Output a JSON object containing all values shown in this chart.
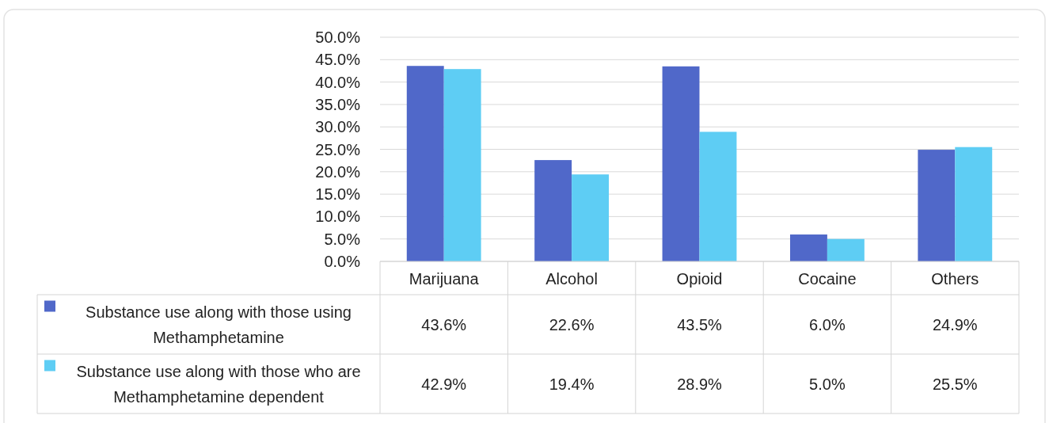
{
  "chart_data": {
    "type": "bar",
    "categories": [
      "Marijuana",
      "Alcohol",
      "Opioid",
      "Cocaine",
      "Others"
    ],
    "series": [
      {
        "name": "Substance use along with those using Methamphetamine",
        "color": "#5068c9",
        "values": [
          43.6,
          22.6,
          43.5,
          6.0,
          24.9
        ],
        "value_labels": [
          "43.6%",
          "22.6%",
          "43.5%",
          "6.0%",
          "24.9%"
        ]
      },
      {
        "name": "Substance use along with those who are Methamphetamine dependent",
        "color": "#5ecdf4",
        "values": [
          42.9,
          19.4,
          28.9,
          5.0,
          25.5
        ],
        "value_labels": [
          "42.9%",
          "19.4%",
          "28.9%",
          "5.0%",
          "25.5%"
        ]
      }
    ],
    "ylim": [
      0,
      50
    ],
    "yticks": [
      {
        "value": 0,
        "label": "0.0%"
      },
      {
        "value": 5,
        "label": "5.0%"
      },
      {
        "value": 10,
        "label": "10.0%"
      },
      {
        "value": 15,
        "label": "15.0%"
      },
      {
        "value": 20,
        "label": "20.0%"
      },
      {
        "value": 25,
        "label": "25.0%"
      },
      {
        "value": 30,
        "label": "30.0%"
      },
      {
        "value": 35,
        "label": "35.0%"
      },
      {
        "value": 40,
        "label": "40.0%"
      },
      {
        "value": 45,
        "label": "45.0%"
      },
      {
        "value": 50,
        "label": "50.0%"
      }
    ],
    "grid": "y",
    "legend": "bottom"
  }
}
